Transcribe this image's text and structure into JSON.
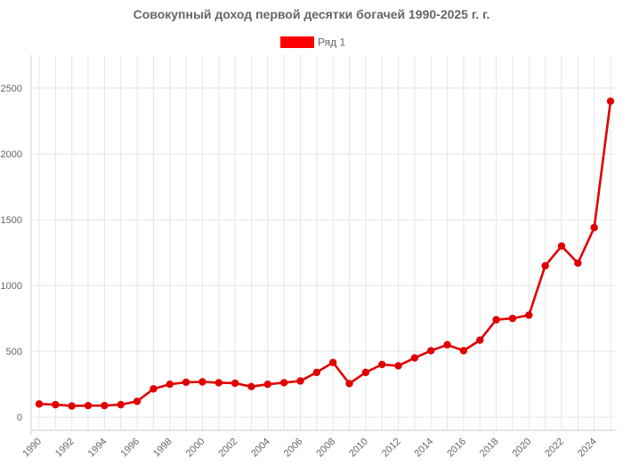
{
  "chart_data": {
    "type": "line",
    "title": "Совокупный доход первой десятки богачей 1990-2025 г. г.",
    "xlabel": "",
    "ylabel": "",
    "x": [
      1990,
      1991,
      1992,
      1993,
      1994,
      1995,
      1996,
      1997,
      1998,
      1999,
      2000,
      2001,
      2002,
      2003,
      2004,
      2005,
      2006,
      2007,
      2008,
      2009,
      2010,
      2011,
      2012,
      2013,
      2014,
      2015,
      2016,
      2017,
      2018,
      2019,
      2020,
      2021,
      2022,
      2023,
      2024,
      2025
    ],
    "x_tick_labels": [
      "1990",
      "1992",
      "1994",
      "1996",
      "1998",
      "2000",
      "2002",
      "2004",
      "2006",
      "2008",
      "2010",
      "2012",
      "2014",
      "2016",
      "2018",
      "2020",
      "2022",
      "2024"
    ],
    "series": [
      {
        "name": "Ряд 1",
        "color": "#e00000",
        "legend_color": "#ff0000",
        "values": [
          100,
          95,
          85,
          88,
          88,
          95,
          120,
          215,
          250,
          265,
          268,
          262,
          258,
          232,
          250,
          262,
          275,
          340,
          415,
          255,
          340,
          400,
          390,
          450,
          505,
          550,
          505,
          585,
          740,
          750,
          775,
          1150,
          1300,
          1170,
          1440,
          2400
        ]
      }
    ],
    "ylim": [
      -100,
      2750
    ],
    "y_ticks": [
      0,
      500,
      1000,
      1500,
      2000,
      2500
    ],
    "grid": true,
    "legend": "top"
  }
}
